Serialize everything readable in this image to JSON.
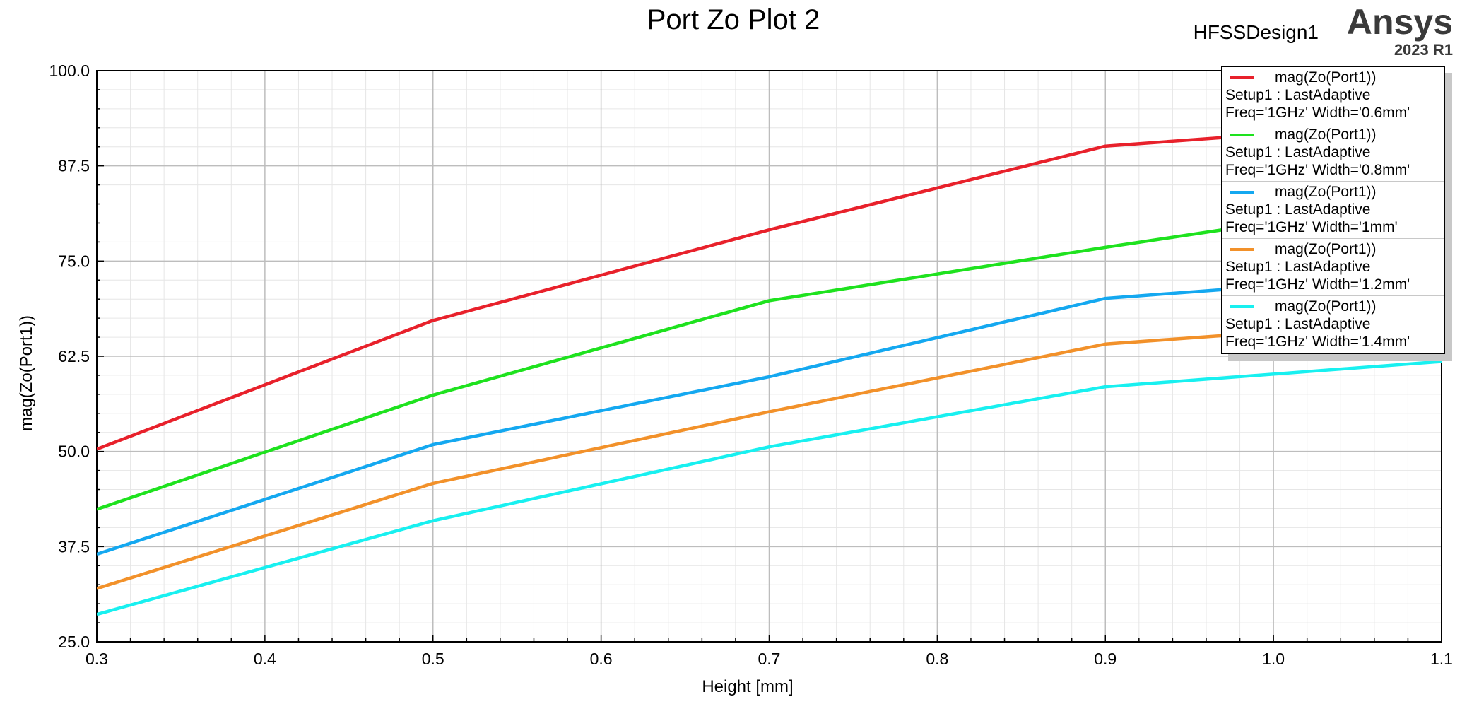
{
  "header": {
    "title": "Port Zo Plot 2",
    "design_name": "HFSSDesign1",
    "brand": "Ansys",
    "version": "2023 R1"
  },
  "chart_data": {
    "type": "line",
    "title": "Port Zo Plot 2",
    "xlabel": "Height [mm]",
    "ylabel": "mag(Zo(Port1))",
    "xlim": [
      0.3,
      1.1
    ],
    "ylim": [
      25.0,
      100.0
    ],
    "xticks": [
      "0.3",
      "0.4",
      "0.5",
      "0.6",
      "0.7",
      "0.8",
      "0.9",
      "1.0",
      "1.1"
    ],
    "yticks": [
      "25.0",
      "37.5",
      "50.0",
      "62.5",
      "75.0",
      "87.5",
      "100.0"
    ],
    "grid": true,
    "legend_position": "top-right",
    "x": [
      0.3,
      0.5,
      0.7,
      0.9,
      1.1
    ],
    "series": [
      {
        "name": "mag(Zo(Port1))",
        "setup": "Setup1 : LastAdaptive",
        "variation": "Freq='1GHz' Width='0.6mm'",
        "color": "#e8212b",
        "values": [
          50.3,
          67.2,
          79.1,
          90.1,
          93.3
        ]
      },
      {
        "name": "mag(Zo(Port1))",
        "setup": "Setup1 : LastAdaptive",
        "variation": "Freq='1GHz' Width='0.8mm'",
        "color": "#1ee21e",
        "values": [
          42.4,
          57.4,
          69.8,
          76.8,
          83.4
        ]
      },
      {
        "name": "mag(Zo(Port1))",
        "setup": "Setup1 : LastAdaptive",
        "variation": "Freq='1GHz' Width='1mm'",
        "color": "#14a8f0",
        "values": [
          36.5,
          50.9,
          59.8,
          70.1,
          73.4
        ]
      },
      {
        "name": "mag(Zo(Port1))",
        "setup": "Setup1 : LastAdaptive",
        "variation": "Freq='1GHz' Width='1.2mm'",
        "color": "#f2912a",
        "values": [
          32.0,
          45.8,
          55.2,
          64.1,
          67.3
        ]
      },
      {
        "name": "mag(Zo(Port1))",
        "setup": "Setup1 : LastAdaptive",
        "variation": "Freq='1GHz' Width='1.4mm'",
        "color": "#18f0f0",
        "values": [
          28.6,
          40.9,
          50.6,
          58.5,
          61.8
        ]
      }
    ]
  }
}
